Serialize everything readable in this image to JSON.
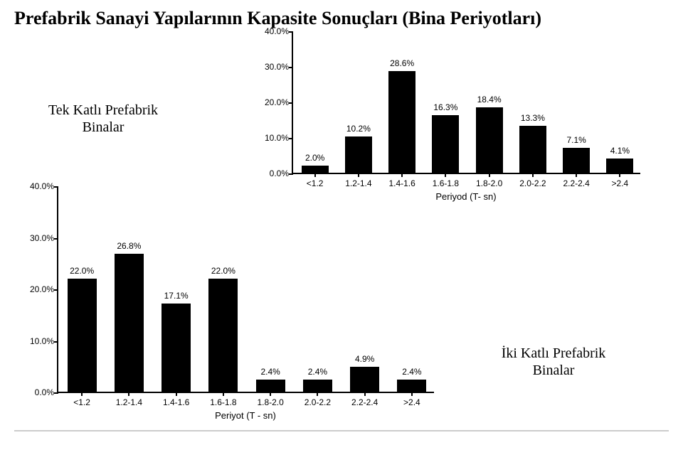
{
  "title": "Prefabrik Sanayi Yapılarının Kapasite Sonuçları (Bina Periyotları)",
  "caption_top": "Tek Katlı Prefabrik Binalar",
  "caption_bottom": "İki Katlı Prefabrik Binalar",
  "chart_top": {
    "type": "bar",
    "bar_color": "#000000",
    "axis_color": "#000000",
    "tick_font_size": 12,
    "barlabel_font_size": 12,
    "xlabel": "Periyod (T- sn)",
    "ylim_max": 40,
    "ytick_step": 10,
    "ytick_suffix": ".0%",
    "value_suffix": "%",
    "categories": [
      "<1.2",
      "1.2-1.4",
      "1.4-1.6",
      "1.6-1.8",
      "1.8-2.0",
      "2.0-2.2",
      "2.2-2.4",
      ">2.4"
    ],
    "values": [
      2.0,
      10.2,
      28.6,
      16.3,
      18.4,
      13.3,
      7.1,
      4.1
    ]
  },
  "chart_bottom": {
    "type": "bar",
    "bar_color": "#000000",
    "axis_color": "#000000",
    "tick_font_size": 12,
    "barlabel_font_size": 12,
    "xlabel": "Periyot (T - sn)",
    "ylim_max": 40,
    "ytick_step": 10,
    "ytick_suffix": ".0%",
    "value_suffix": "%",
    "categories": [
      "<1.2",
      "1.2-1.4",
      "1.4-1.6",
      "1.6-1.8",
      "1.8-2.0",
      "2.0-2.2",
      "2.2-2.4",
      ">2.4"
    ],
    "values": [
      22.0,
      26.8,
      17.1,
      22.0,
      2.4,
      2.4,
      4.9,
      2.4
    ]
  }
}
